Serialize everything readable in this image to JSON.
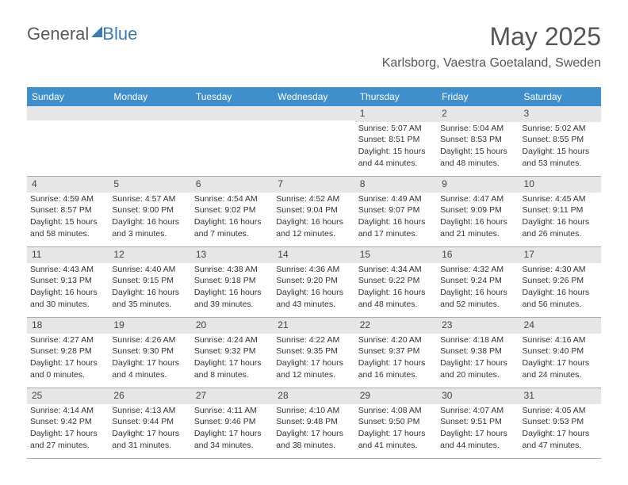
{
  "logo": {
    "part1": "General",
    "part2": "Blue"
  },
  "title": "May 2025",
  "location": "Karlsborg, Vaestra Goetaland, Sweden",
  "colors": {
    "header_bg": "#3e8fcc",
    "header_text": "#ffffff",
    "daynum_bg": "#e6e6e6",
    "text": "#333333",
    "logo_gray": "#5a5a5a",
    "logo_blue": "#3a7ab8"
  },
  "weekdays": [
    "Sunday",
    "Monday",
    "Tuesday",
    "Wednesday",
    "Thursday",
    "Friday",
    "Saturday"
  ],
  "weeks": [
    [
      {
        "n": "",
        "lines": []
      },
      {
        "n": "",
        "lines": []
      },
      {
        "n": "",
        "lines": []
      },
      {
        "n": "",
        "lines": []
      },
      {
        "n": "1",
        "lines": [
          "Sunrise: 5:07 AM",
          "Sunset: 8:51 PM",
          "Daylight: 15 hours",
          "and 44 minutes."
        ]
      },
      {
        "n": "2",
        "lines": [
          "Sunrise: 5:04 AM",
          "Sunset: 8:53 PM",
          "Daylight: 15 hours",
          "and 48 minutes."
        ]
      },
      {
        "n": "3",
        "lines": [
          "Sunrise: 5:02 AM",
          "Sunset: 8:55 PM",
          "Daylight: 15 hours",
          "and 53 minutes."
        ]
      }
    ],
    [
      {
        "n": "4",
        "lines": [
          "Sunrise: 4:59 AM",
          "Sunset: 8:57 PM",
          "Daylight: 15 hours",
          "and 58 minutes."
        ]
      },
      {
        "n": "5",
        "lines": [
          "Sunrise: 4:57 AM",
          "Sunset: 9:00 PM",
          "Daylight: 16 hours",
          "and 3 minutes."
        ]
      },
      {
        "n": "6",
        "lines": [
          "Sunrise: 4:54 AM",
          "Sunset: 9:02 PM",
          "Daylight: 16 hours",
          "and 7 minutes."
        ]
      },
      {
        "n": "7",
        "lines": [
          "Sunrise: 4:52 AM",
          "Sunset: 9:04 PM",
          "Daylight: 16 hours",
          "and 12 minutes."
        ]
      },
      {
        "n": "8",
        "lines": [
          "Sunrise: 4:49 AM",
          "Sunset: 9:07 PM",
          "Daylight: 16 hours",
          "and 17 minutes."
        ]
      },
      {
        "n": "9",
        "lines": [
          "Sunrise: 4:47 AM",
          "Sunset: 9:09 PM",
          "Daylight: 16 hours",
          "and 21 minutes."
        ]
      },
      {
        "n": "10",
        "lines": [
          "Sunrise: 4:45 AM",
          "Sunset: 9:11 PM",
          "Daylight: 16 hours",
          "and 26 minutes."
        ]
      }
    ],
    [
      {
        "n": "11",
        "lines": [
          "Sunrise: 4:43 AM",
          "Sunset: 9:13 PM",
          "Daylight: 16 hours",
          "and 30 minutes."
        ]
      },
      {
        "n": "12",
        "lines": [
          "Sunrise: 4:40 AM",
          "Sunset: 9:15 PM",
          "Daylight: 16 hours",
          "and 35 minutes."
        ]
      },
      {
        "n": "13",
        "lines": [
          "Sunrise: 4:38 AM",
          "Sunset: 9:18 PM",
          "Daylight: 16 hours",
          "and 39 minutes."
        ]
      },
      {
        "n": "14",
        "lines": [
          "Sunrise: 4:36 AM",
          "Sunset: 9:20 PM",
          "Daylight: 16 hours",
          "and 43 minutes."
        ]
      },
      {
        "n": "15",
        "lines": [
          "Sunrise: 4:34 AM",
          "Sunset: 9:22 PM",
          "Daylight: 16 hours",
          "and 48 minutes."
        ]
      },
      {
        "n": "16",
        "lines": [
          "Sunrise: 4:32 AM",
          "Sunset: 9:24 PM",
          "Daylight: 16 hours",
          "and 52 minutes."
        ]
      },
      {
        "n": "17",
        "lines": [
          "Sunrise: 4:30 AM",
          "Sunset: 9:26 PM",
          "Daylight: 16 hours",
          "and 56 minutes."
        ]
      }
    ],
    [
      {
        "n": "18",
        "lines": [
          "Sunrise: 4:27 AM",
          "Sunset: 9:28 PM",
          "Daylight: 17 hours",
          "and 0 minutes."
        ]
      },
      {
        "n": "19",
        "lines": [
          "Sunrise: 4:26 AM",
          "Sunset: 9:30 PM",
          "Daylight: 17 hours",
          "and 4 minutes."
        ]
      },
      {
        "n": "20",
        "lines": [
          "Sunrise: 4:24 AM",
          "Sunset: 9:32 PM",
          "Daylight: 17 hours",
          "and 8 minutes."
        ]
      },
      {
        "n": "21",
        "lines": [
          "Sunrise: 4:22 AM",
          "Sunset: 9:35 PM",
          "Daylight: 17 hours",
          "and 12 minutes."
        ]
      },
      {
        "n": "22",
        "lines": [
          "Sunrise: 4:20 AM",
          "Sunset: 9:37 PM",
          "Daylight: 17 hours",
          "and 16 minutes."
        ]
      },
      {
        "n": "23",
        "lines": [
          "Sunrise: 4:18 AM",
          "Sunset: 9:38 PM",
          "Daylight: 17 hours",
          "and 20 minutes."
        ]
      },
      {
        "n": "24",
        "lines": [
          "Sunrise: 4:16 AM",
          "Sunset: 9:40 PM",
          "Daylight: 17 hours",
          "and 24 minutes."
        ]
      }
    ],
    [
      {
        "n": "25",
        "lines": [
          "Sunrise: 4:14 AM",
          "Sunset: 9:42 PM",
          "Daylight: 17 hours",
          "and 27 minutes."
        ]
      },
      {
        "n": "26",
        "lines": [
          "Sunrise: 4:13 AM",
          "Sunset: 9:44 PM",
          "Daylight: 17 hours",
          "and 31 minutes."
        ]
      },
      {
        "n": "27",
        "lines": [
          "Sunrise: 4:11 AM",
          "Sunset: 9:46 PM",
          "Daylight: 17 hours",
          "and 34 minutes."
        ]
      },
      {
        "n": "28",
        "lines": [
          "Sunrise: 4:10 AM",
          "Sunset: 9:48 PM",
          "Daylight: 17 hours",
          "and 38 minutes."
        ]
      },
      {
        "n": "29",
        "lines": [
          "Sunrise: 4:08 AM",
          "Sunset: 9:50 PM",
          "Daylight: 17 hours",
          "and 41 minutes."
        ]
      },
      {
        "n": "30",
        "lines": [
          "Sunrise: 4:07 AM",
          "Sunset: 9:51 PM",
          "Daylight: 17 hours",
          "and 44 minutes."
        ]
      },
      {
        "n": "31",
        "lines": [
          "Sunrise: 4:05 AM",
          "Sunset: 9:53 PM",
          "Daylight: 17 hours",
          "and 47 minutes."
        ]
      }
    ]
  ]
}
